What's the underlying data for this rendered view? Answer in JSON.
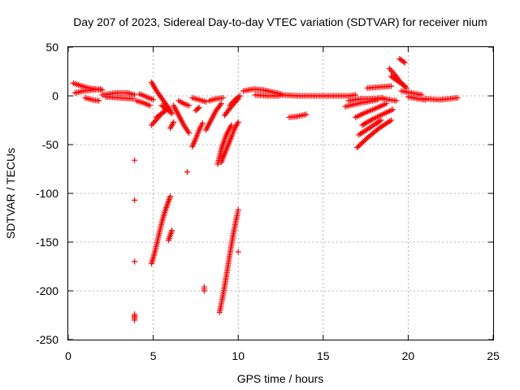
{
  "chart_data": {
    "type": "scatter",
    "title": "Day 207 of 2023, Sidereal Day-to-day VTEC variation (SDTVAR) for receiver nium",
    "xlabel": "GPS time / hours",
    "ylabel": "SDTVAR / TECUs",
    "xlim": [
      0,
      25
    ],
    "ylim": [
      -250,
      50
    ],
    "xticks": [
      0,
      5,
      10,
      15,
      20,
      25
    ],
    "yticks": [
      -250,
      -200,
      -150,
      -100,
      -50,
      0,
      50
    ],
    "grid": true,
    "marker": "+",
    "color": "#ff0000",
    "series": [
      {
        "name": "SDTVAR",
        "segments": [
          {
            "x": [
              0.3,
              0.8,
              1.2,
              1.6,
              2.0
            ],
            "y": [
              13,
              10,
              8,
              7,
              6
            ]
          },
          {
            "x": [
              0.4,
              0.9,
              1.4,
              1.9
            ],
            "y": [
              3,
              5,
              6,
              7
            ]
          },
          {
            "x": [
              1.0,
              1.4,
              1.8
            ],
            "y": [
              -2,
              -4,
              -5
            ]
          },
          {
            "x": [
              2.0,
              2.8,
              3.5,
              3.9
            ],
            "y": [
              1,
              3,
              3,
              1
            ]
          },
          {
            "x": [
              2.2,
              3.0,
              3.8
            ],
            "y": [
              -1,
              -2,
              -3
            ]
          },
          {
            "x": [
              4.0,
              4.4,
              4.8
            ],
            "y": [
              -5,
              -7,
              -10
            ]
          },
          {
            "x": [
              4.2,
              4.6,
              5.0
            ],
            "y": [
              2,
              -1,
              -4
            ]
          },
          {
            "x": [
              4.9,
              5.2,
              5.6,
              6.0
            ],
            "y": [
              14,
              5,
              -5,
              -15
            ]
          },
          {
            "x": [
              4.9,
              5.2,
              5.5,
              5.9
            ],
            "y": [
              -30,
              -24,
              -18,
              -12
            ]
          },
          {
            "x": [
              5.2,
              5.5,
              5.8
            ],
            "y": [
              -22,
              -18,
              -14
            ]
          },
          {
            "x": [
              5.5,
              5.8,
              6.1
            ],
            "y": [
              -10,
              -14,
              -18
            ]
          },
          {
            "x": [
              6.0,
              6.1,
              6.2
            ],
            "y": [
              -33,
              -30,
              -27
            ]
          },
          {
            "x": [
              6.2,
              6.5,
              6.8,
              7.1
            ],
            "y": [
              -10,
              -20,
              -30,
              -38
            ]
          },
          {
            "x": [
              6.5,
              6.8,
              7.1
            ],
            "y": [
              -5,
              -8,
              -10
            ]
          },
          {
            "x": [
              7.3,
              7.5,
              7.7,
              7.9
            ],
            "y": [
              -52,
              -44,
              -35,
              -28
            ]
          },
          {
            "x": [
              7.3,
              7.7,
              8.1
            ],
            "y": [
              -2,
              -4,
              -6
            ]
          },
          {
            "x": [
              7.5,
              7.7
            ],
            "y": [
              -15,
              -12
            ]
          },
          {
            "x": [
              8.1,
              8.4,
              8.7,
              9.0
            ],
            "y": [
              -35,
              -25,
              -15,
              -8
            ]
          },
          {
            "x": [
              8.3,
              8.7,
              9.1
            ],
            "y": [
              -5,
              -3,
              -2
            ]
          },
          {
            "x": [
              8.8,
              9.0,
              9.3,
              9.6
            ],
            "y": [
              -70,
              -55,
              -40,
              -30
            ]
          },
          {
            "x": [
              9.0,
              9.3,
              9.6,
              9.8,
              10.0
            ],
            "y": [
              -68,
              -55,
              -42,
              -33,
              -27
            ]
          },
          {
            "x": [
              9.2,
              9.5,
              9.8,
              10.0
            ],
            "y": [
              -20,
              -13,
              -7,
              -3
            ]
          },
          {
            "x": [
              9.5,
              9.8,
              10.1
            ],
            "y": [
              -10,
              -4,
              0
            ]
          },
          {
            "x": [
              10.3,
              10.9,
              11.5,
              12.0,
              12.5
            ],
            "y": [
              5,
              7,
              6,
              4,
              2
            ]
          },
          {
            "x": [
              11.0,
              11.7,
              12.4
            ],
            "y": [
              1,
              0,
              0
            ]
          },
          {
            "x": [
              12.5,
              13.5,
              14.5,
              15.5,
              16.5,
              16.9
            ],
            "y": [
              1,
              0,
              0,
              0,
              0,
              1
            ]
          },
          {
            "x": [
              13.0,
              13.5,
              14.0
            ],
            "y": [
              -22,
              -21,
              -19
            ]
          },
          {
            "x": [
              16.3,
              17.0,
              17.6,
              18.2
            ],
            "y": [
              -11,
              -8,
              -6,
              -4
            ]
          },
          {
            "x": [
              16.5,
              17.2,
              17.8,
              18.5
            ],
            "y": [
              -5,
              -3,
              -3,
              -2
            ]
          },
          {
            "x": [
              16.9,
              17.5,
              18.2,
              18.7
            ],
            "y": [
              -22,
              -17,
              -12,
              -8
            ]
          },
          {
            "x": [
              17.0,
              17.6,
              18.3,
              19.0
            ],
            "y": [
              -53,
              -43,
              -33,
              -25
            ]
          },
          {
            "x": [
              17.1,
              17.8,
              18.4
            ],
            "y": [
              -40,
              -32,
              -25
            ]
          },
          {
            "x": [
              17.3,
              17.9,
              18.6,
              19.1
            ],
            "y": [
              -30,
              -24,
              -18,
              -14
            ]
          },
          {
            "x": [
              17.6,
              18.3,
              19.0
            ],
            "y": [
              8,
              9,
              10
            ]
          },
          {
            "x": [
              18.5,
              18.9,
              19.3
            ],
            "y": [
              -3,
              -4,
              -5
            ]
          },
          {
            "x": [
              18.9,
              19.2,
              19.5,
              19.9
            ],
            "y": [
              28,
              22,
              15,
              8
            ]
          },
          {
            "x": [
              19.0,
              19.4,
              19.8
            ],
            "y": [
              20,
              15,
              10
            ]
          },
          {
            "x": [
              19.5,
              19.8
            ],
            "y": [
              38,
              34
            ]
          },
          {
            "x": [
              19.6,
              20.2,
              20.8
            ],
            "y": [
              5,
              3,
              1
            ]
          },
          {
            "x": [
              20.0,
              20.6,
              21.0
            ],
            "y": [
              -1,
              -3,
              -4
            ]
          },
          {
            "x": [
              21.0,
              21.8,
              22.4,
              22.9
            ],
            "y": [
              -3,
              -4,
              -3,
              -2
            ]
          },
          {
            "x": [
              4.9,
              5.1,
              5.3,
              5.5,
              5.7,
              5.9,
              6.0
            ],
            "y": [
              -172,
              -160,
              -145,
              -130,
              -118,
              -108,
              -103
            ]
          },
          {
            "x": [
              5.9,
              6.1
            ],
            "y": [
              -148,
              -138
            ]
          },
          {
            "x": [
              8.9,
              9.1,
              9.3,
              9.5,
              9.7,
              9.9,
              10.0
            ],
            "y": [
              -222,
              -205,
              -185,
              -163,
              -143,
              -125,
              -117
            ]
          },
          {
            "x": [
              10.0
            ],
            "y": [
              -160
            ]
          },
          {
            "x": [
              8.0,
              8.0
            ],
            "y": [
              -196,
              -200
            ]
          },
          {
            "x": [
              7.0
            ],
            "y": [
              -78
            ]
          },
          {
            "x": [
              3.9
            ],
            "y": [
              -66
            ]
          },
          {
            "x": [
              3.9
            ],
            "y": [
              -107
            ]
          },
          {
            "x": [
              3.9
            ],
            "y": [
              -170
            ]
          },
          {
            "x": [
              3.9,
              3.9,
              3.9
            ],
            "y": [
              -224,
              -227,
              -230
            ]
          }
        ]
      }
    ]
  }
}
